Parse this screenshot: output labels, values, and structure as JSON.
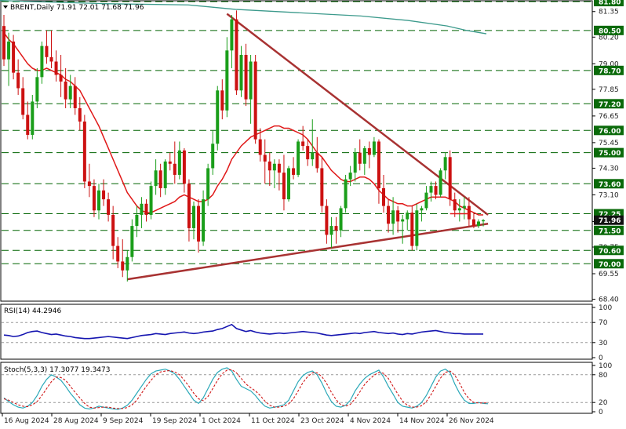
{
  "header": {
    "symbol_line": "BRENT,Daily  71.91 72.01 71.68 71.96",
    "rsi_label": "RSI(14) 44.2946",
    "stoch_label": "Stoch(5,3,3) 17.3077 19.3473"
  },
  "colors": {
    "bull": "#1a9e1a",
    "bear": "#cc1111",
    "sma": "#e01818",
    "long_ma": "#3c9a8c",
    "trendline": "#a83232",
    "level_line": "#006400",
    "level_tag": "#0a6a0a",
    "current_tag": "#111111",
    "rsi_line": "#1515b0",
    "stoch_main": "#2aa8b8",
    "stoch_signal": "#d01818"
  },
  "chart_data": {
    "type": "candlestick",
    "symbol": "BRENT",
    "timeframe": "Daily",
    "last_ohlc": {
      "open": 71.91,
      "high": 72.01,
      "low": 71.68,
      "close": 71.96
    },
    "price_axis": {
      "ylim": [
        68.35,
        81.8
      ],
      "ticks": [
        81.35,
        80.2,
        79.0,
        77.85,
        76.65,
        75.45,
        74.3,
        73.1,
        71.9,
        70.75,
        69.55,
        68.4
      ]
    },
    "horizontal_levels": [
      81.8,
      80.5,
      78.7,
      77.2,
      76.0,
      75.0,
      73.6,
      72.25,
      71.5,
      70.6,
      70.0
    ],
    "current_price": 71.96,
    "x_labels": [
      "16 Aug 2024",
      "28 Aug 2024",
      "9 Sep 2024",
      "19 Sep 2024",
      "1 Oct 2024",
      "11 Oct 2024",
      "23 Oct 2024",
      "4 Nov 2024",
      "14 Nov 2024",
      "26 Nov 2024"
    ],
    "candles": [
      [
        80.7,
        81.2,
        78.9,
        79.2
      ],
      [
        79.2,
        80.4,
        78.0,
        80.0
      ],
      [
        80.0,
        80.3,
        78.3,
        78.6
      ],
      [
        78.6,
        79.2,
        77.6,
        77.9
      ],
      [
        77.9,
        78.4,
        76.5,
        76.7
      ],
      [
        76.7,
        77.3,
        75.6,
        75.8
      ],
      [
        75.8,
        77.6,
        75.6,
        77.3
      ],
      [
        77.3,
        78.8,
        77.0,
        78.4
      ],
      [
        78.4,
        80.0,
        78.1,
        79.8
      ],
      [
        79.8,
        80.5,
        79.0,
        79.3
      ],
      [
        79.3,
        80.5,
        78.8,
        79.1
      ],
      [
        79.1,
        79.6,
        78.2,
        78.5
      ],
      [
        78.5,
        79.4,
        77.5,
        78.2
      ],
      [
        78.2,
        78.8,
        77.0,
        77.4
      ],
      [
        77.4,
        78.5,
        77.0,
        78.0
      ],
      [
        78.0,
        78.4,
        76.7,
        77.0
      ],
      [
        77.0,
        77.5,
        76.0,
        76.4
      ],
      [
        76.4,
        76.7,
        73.4,
        73.7
      ],
      [
        73.7,
        74.5,
        73.0,
        73.5
      ],
      [
        73.5,
        73.8,
        72.1,
        72.4
      ],
      [
        72.4,
        73.6,
        72.0,
        73.3
      ],
      [
        73.3,
        73.8,
        72.6,
        72.9
      ],
      [
        72.9,
        73.2,
        71.9,
        72.2
      ],
      [
        72.2,
        72.6,
        70.2,
        70.8
      ],
      [
        70.8,
        71.2,
        69.8,
        70.1
      ],
      [
        70.1,
        71.1,
        69.4,
        69.7
      ],
      [
        69.7,
        70.6,
        69.2,
        70.3
      ],
      [
        70.3,
        72.0,
        70.1,
        71.7
      ],
      [
        71.7,
        72.6,
        71.2,
        72.2
      ],
      [
        72.2,
        73.0,
        71.6,
        72.7
      ],
      [
        72.7,
        72.9,
        71.9,
        72.2
      ],
      [
        72.2,
        73.7,
        72.0,
        73.5
      ],
      [
        73.5,
        74.7,
        73.1,
        74.2
      ],
      [
        74.2,
        74.5,
        73.0,
        73.4
      ],
      [
        73.4,
        74.7,
        73.1,
        74.6
      ],
      [
        74.6,
        75.0,
        74.2,
        74.5
      ],
      [
        74.5,
        75.5,
        73.6,
        74.0
      ],
      [
        74.0,
        75.5,
        73.8,
        75.1
      ],
      [
        75.1,
        75.2,
        73.2,
        73.6
      ],
      [
        73.6,
        73.8,
        71.0,
        71.6
      ],
      [
        71.6,
        72.8,
        71.1,
        72.6
      ],
      [
        72.6,
        72.9,
        70.5,
        71.0
      ],
      [
        71.0,
        73.3,
        70.8,
        72.9
      ],
      [
        72.9,
        74.5,
        72.6,
        74.3
      ],
      [
        74.3,
        76.0,
        74.0,
        75.4
      ],
      [
        75.4,
        78.0,
        75.1,
        77.8
      ],
      [
        77.8,
        78.3,
        76.5,
        76.9
      ],
      [
        76.9,
        80.2,
        76.6,
        79.6
      ],
      [
        79.6,
        81.2,
        78.8,
        81.0
      ],
      [
        81.0,
        81.4,
        77.6,
        77.8
      ],
      [
        77.8,
        79.8,
        77.5,
        79.4
      ],
      [
        79.4,
        79.9,
        77.1,
        77.4
      ],
      [
        77.4,
        79.4,
        76.3,
        79.1
      ],
      [
        79.1,
        79.4,
        75.4,
        75.6
      ],
      [
        75.6,
        76.1,
        74.6,
        74.9
      ],
      [
        74.9,
        75.6,
        73.6,
        74.6
      ],
      [
        74.6,
        75.0,
        73.5,
        74.2
      ],
      [
        74.2,
        74.7,
        73.4,
        74.5
      ],
      [
        74.5,
        74.7,
        73.3,
        74.1
      ],
      [
        74.1,
        74.9,
        72.4,
        72.9
      ],
      [
        72.9,
        74.4,
        72.8,
        74.3
      ],
      [
        74.3,
        74.8,
        73.8,
        74.0
      ],
      [
        74.0,
        75.6,
        73.9,
        75.5
      ],
      [
        75.5,
        76.2,
        75.1,
        75.3
      ],
      [
        75.3,
        75.6,
        74.4,
        74.7
      ],
      [
        74.7,
        76.5,
        74.4,
        75.0
      ],
      [
        75.0,
        75.7,
        74.1,
        74.3
      ],
      [
        74.3,
        74.8,
        72.3,
        72.6
      ],
      [
        72.6,
        72.9,
        70.9,
        71.3
      ],
      [
        71.3,
        72.1,
        70.7,
        71.7
      ],
      [
        71.7,
        72.1,
        70.9,
        71.5
      ],
      [
        71.5,
        72.6,
        71.2,
        72.5
      ],
      [
        72.5,
        74.0,
        72.3,
        73.8
      ],
      [
        73.8,
        74.4,
        73.5,
        74.1
      ],
      [
        74.1,
        75.2,
        73.7,
        75.0
      ],
      [
        75.0,
        75.6,
        74.2,
        74.5
      ],
      [
        74.5,
        75.3,
        74.0,
        75.2
      ],
      [
        75.2,
        75.5,
        74.3,
        74.9
      ],
      [
        74.9,
        75.7,
        74.8,
        75.5
      ],
      [
        75.5,
        75.6,
        72.7,
        73.4
      ],
      [
        73.4,
        74.0,
        72.3,
        72.6
      ],
      [
        72.6,
        72.9,
        71.4,
        71.8
      ],
      [
        71.8,
        73.0,
        71.3,
        72.4
      ],
      [
        72.4,
        72.6,
        71.4,
        71.9
      ],
      [
        71.9,
        72.2,
        70.9,
        72.0
      ],
      [
        72.0,
        72.4,
        71.5,
        72.3
      ],
      [
        72.3,
        72.6,
        70.6,
        70.8
      ],
      [
        70.8,
        72.7,
        70.6,
        72.4
      ],
      [
        72.4,
        72.6,
        71.9,
        72.5
      ],
      [
        72.5,
        73.5,
        72.4,
        73.2
      ],
      [
        73.2,
        73.7,
        72.8,
        73.5
      ],
      [
        73.5,
        73.7,
        72.9,
        73.1
      ],
      [
        73.1,
        74.3,
        73.0,
        74.2
      ],
      [
        74.2,
        75.0,
        73.8,
        74.8
      ],
      [
        74.8,
        75.1,
        72.6,
        72.9
      ],
      [
        72.9,
        73.2,
        72.1,
        72.4
      ],
      [
        72.4,
        72.9,
        71.9,
        72.5
      ],
      [
        72.5,
        73.0,
        72.0,
        72.6
      ],
      [
        72.6,
        73.0,
        71.7,
        72.0
      ],
      [
        72.0,
        72.3,
        71.6,
        71.7
      ],
      [
        71.7,
        72.0,
        71.6,
        71.9
      ],
      [
        71.91,
        72.01,
        71.68,
        71.96
      ]
    ],
    "sma": [
      80.4,
      80.1,
      79.9,
      79.6,
      79.3,
      79.0,
      78.8,
      78.7,
      78.7,
      78.8,
      78.7,
      78.6,
      78.5,
      78.3,
      78.2,
      78.0,
      77.8,
      77.4,
      77.0,
      76.6,
      76.2,
      75.7,
      75.2,
      74.7,
      74.2,
      73.7,
      73.2,
      72.9,
      72.6,
      72.4,
      72.3,
      72.3,
      72.4,
      72.5,
      72.6,
      72.7,
      72.8,
      73.0,
      73.1,
      73.0,
      72.9,
      72.8,
      72.8,
      72.9,
      73.1,
      73.5,
      73.8,
      74.2,
      74.7,
      75.0,
      75.3,
      75.5,
      75.7,
      75.8,
      75.9,
      76.0,
      76.1,
      76.2,
      76.2,
      76.1,
      76.1,
      76.0,
      75.9,
      75.8,
      75.6,
      75.3,
      75.0,
      74.8,
      74.5,
      74.2,
      74.0,
      73.8,
      73.7,
      73.7,
      73.8,
      73.9,
      73.9,
      73.8,
      73.6,
      73.3,
      73.1,
      72.9,
      72.8,
      72.7,
      72.7,
      72.6,
      72.6,
      72.7,
      72.8,
      72.9,
      73.0,
      73.0,
      73.0,
      73.0,
      72.9,
      72.8,
      72.6,
      72.5,
      72.4,
      72.3,
      72.2,
      72.2
    ],
    "long_ma": [
      [
        0,
        81.85
      ],
      [
        40,
        81.8
      ],
      [
        140,
        81.7
      ],
      [
        240,
        81.65
      ],
      [
        300,
        81.45
      ],
      [
        380,
        81.3
      ],
      [
        460,
        81.15
      ],
      [
        520,
        80.95
      ],
      [
        570,
        80.7
      ],
      [
        595,
        80.5
      ],
      [
        620,
        80.35
      ]
    ],
    "trendlines": [
      {
        "from": {
          "bar": 47,
          "price": 81.25
        },
        "to": {
          "bar": 102,
          "price": 72.2
        }
      },
      {
        "from": {
          "bar": 26,
          "price": 69.3
        },
        "to": {
          "bar": 102,
          "price": 71.8
        }
      }
    ],
    "rsi": {
      "levels": [
        70,
        30
      ],
      "ticks": [
        100,
        70,
        30,
        0
      ],
      "ylim": [
        0,
        100
      ],
      "values": [
        45,
        44,
        42,
        43,
        46,
        50,
        52,
        53,
        50,
        48,
        46,
        47,
        45,
        43,
        42,
        40,
        39,
        38,
        38,
        39,
        40,
        41,
        42,
        41,
        40,
        39,
        38,
        40,
        42,
        44,
        45,
        46,
        48,
        47,
        46,
        48,
        49,
        50,
        51,
        49,
        48,
        49,
        51,
        52,
        53,
        56,
        58,
        62,
        66,
        58,
        55,
        52,
        54,
        51,
        49,
        48,
        47,
        48,
        49,
        48,
        49,
        50,
        51,
        52,
        51,
        50,
        49,
        47,
        45,
        44,
        45,
        46,
        47,
        48,
        49,
        48,
        50,
        51,
        52,
        50,
        49,
        48,
        49,
        47,
        46,
        48,
        47,
        49,
        51,
        52,
        53,
        54,
        52,
        50,
        49,
        48,
        48,
        47,
        47,
        47,
        47,
        47
      ],
      "last": 44.2946
    },
    "stoch": {
      "ticks": [
        100,
        80,
        20,
        0
      ],
      "levels": [
        80,
        20
      ],
      "ylim": [
        0,
        100
      ],
      "k": [
        30,
        22,
        15,
        10,
        8,
        12,
        20,
        35,
        55,
        70,
        80,
        75,
        68,
        55,
        40,
        28,
        15,
        8,
        6,
        8,
        12,
        10,
        8,
        6,
        5,
        8,
        14,
        25,
        40,
        55,
        70,
        82,
        88,
        90,
        92,
        88,
        82,
        70,
        55,
        40,
        25,
        18,
        30,
        50,
        70,
        85,
        92,
        95,
        88,
        70,
        55,
        50,
        45,
        35,
        22,
        12,
        8,
        10,
        12,
        15,
        25,
        45,
        65,
        78,
        85,
        88,
        80,
        62,
        40,
        22,
        12,
        10,
        14,
        25,
        45,
        60,
        72,
        80,
        85,
        90,
        75,
        55,
        38,
        20,
        12,
        10,
        8,
        12,
        20,
        35,
        55,
        75,
        88,
        92,
        85,
        60,
        40,
        25,
        18,
        18,
        20,
        18,
        17.3
      ],
      "d": [
        28,
        25,
        20,
        15,
        12,
        11,
        15,
        22,
        35,
        50,
        65,
        75,
        74,
        68,
        55,
        42,
        30,
        18,
        10,
        8,
        9,
        10,
        10,
        8,
        7,
        7,
        9,
        15,
        25,
        40,
        55,
        68,
        80,
        86,
        88,
        89,
        86,
        80,
        68,
        55,
        40,
        28,
        24,
        33,
        50,
        68,
        82,
        90,
        91,
        84,
        72,
        60,
        52,
        45,
        35,
        23,
        14,
        10,
        10,
        12,
        17,
        28,
        45,
        63,
        76,
        84,
        84,
        76,
        61,
        42,
        26,
        15,
        12,
        16,
        28,
        43,
        59,
        70,
        79,
        85,
        83,
        72,
        55,
        38,
        23,
        14,
        10,
        10,
        13,
        22,
        37,
        55,
        73,
        85,
        88,
        79,
        62,
        42,
        28,
        20,
        19,
        19,
        19.3
      ],
      "last_k": 17.3077,
      "last_d": 19.3473
    }
  }
}
